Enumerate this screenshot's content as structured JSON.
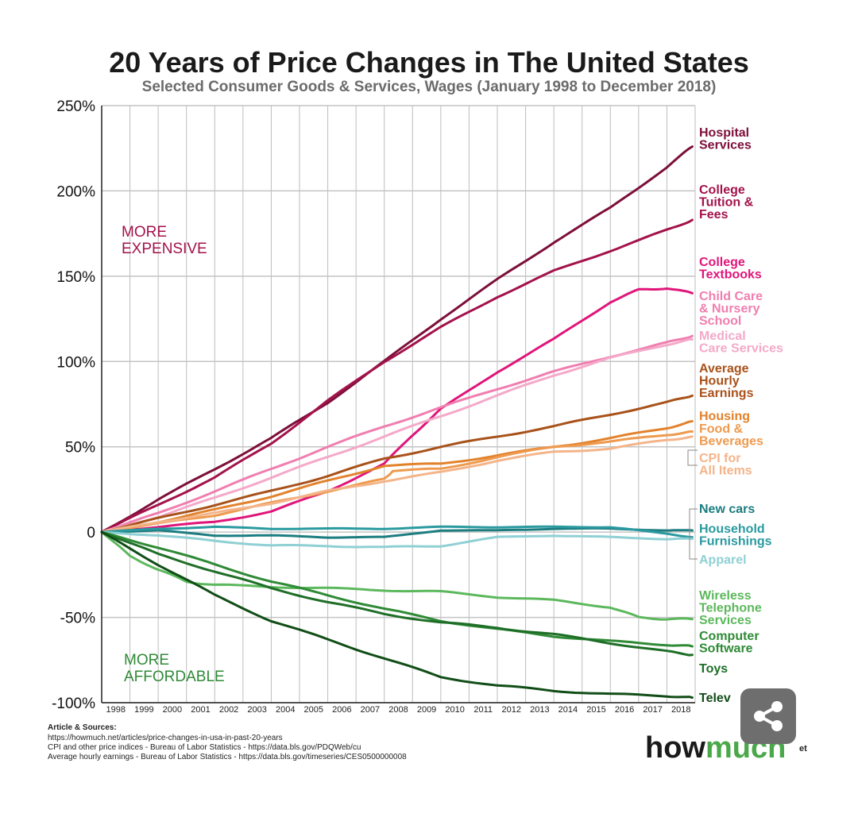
{
  "chart_data": {
    "type": "line",
    "title": "20 Years of Price Changes in The United States",
    "subtitle": "Selected Consumer Goods & Services, Wages (January 1998 to December 2018)",
    "ylim": [
      -100,
      250
    ],
    "xlim": [
      1998,
      2019
    ],
    "y_ticks": [
      {
        "value": 250,
        "label": "250%"
      },
      {
        "value": 200,
        "label": "200%"
      },
      {
        "value": 150,
        "label": "150%"
      },
      {
        "value": 100,
        "label": "100%"
      },
      {
        "value": 50,
        "label": "50%"
      },
      {
        "value": 0,
        "label": "0"
      },
      {
        "value": -50,
        "label": "-50%"
      },
      {
        "value": -100,
        "label": "-100%"
      }
    ],
    "x_ticks": [
      "1998",
      "1999",
      "2000",
      "2001",
      "2002",
      "2003",
      "2004",
      "2005",
      "2006",
      "2007",
      "2008",
      "2009",
      "2010",
      "2011",
      "2012",
      "2013",
      "2014",
      "2015",
      "2016",
      "2017",
      "2018"
    ],
    "grid": true,
    "annotations": {
      "more_expensive": [
        "MORE",
        "EXPENSIVE"
      ],
      "more_affordable": [
        "MORE",
        "AFFORDABLE"
      ]
    },
    "series": [
      {
        "name": "Hospital Services",
        "label_lines": [
          "Hospital",
          "Services"
        ],
        "icon": "hospital-icon",
        "color": "#7d0f3a",
        "x": [
          1998,
          2000,
          2002,
          2004,
          2006,
          2008,
          2010,
          2012,
          2014,
          2016,
          2018,
          2018.9
        ],
        "y": [
          0,
          19,
          37,
          55,
          76,
          100,
          125,
          148,
          170,
          190,
          214,
          226
        ]
      },
      {
        "name": "College Tuition & Fees",
        "label_lines": [
          "College",
          "Tuition &",
          "Fees"
        ],
        "icon": "graduation-cap-icon",
        "color": "#a3124a",
        "x": [
          1998,
          2000,
          2002,
          2004,
          2006,
          2008,
          2010,
          2012,
          2014,
          2016,
          2018,
          2018.9
        ],
        "y": [
          0,
          16,
          32,
          52,
          77,
          100,
          120,
          138,
          153,
          165,
          177,
          183
        ]
      },
      {
        "name": "College Textbooks",
        "label_lines": [
          "College",
          "Textbooks"
        ],
        "icon": "books-icon",
        "color": "#e0157a",
        "x": [
          1998,
          2000,
          2002,
          2004,
          2006,
          2008,
          2009,
          2010,
          2012,
          2014,
          2016,
          2017,
          2018,
          2018.9
        ],
        "y": [
          0,
          3,
          6,
          12,
          24,
          40,
          57,
          72,
          94,
          113,
          135,
          142,
          143,
          140
        ]
      },
      {
        "name": "Child Care & Nursery School",
        "label_lines": [
          "Child Care",
          "& Nursery",
          "School"
        ],
        "icon": "family-icon",
        "color": "#f07eb0",
        "x": [
          1998,
          2000,
          2002,
          2004,
          2006,
          2008,
          2010,
          2012,
          2014,
          2016,
          2018,
          2018.9
        ],
        "y": [
          0,
          11,
          24,
          37,
          50,
          62,
          73,
          84,
          94,
          103,
          111,
          115
        ]
      },
      {
        "name": "Medical Care Services",
        "label_lines": [
          "Medical",
          "Care Services"
        ],
        "icon": "medical-hand-icon",
        "color": "#f4a9c9",
        "x": [
          1998,
          2000,
          2002,
          2004,
          2006,
          2008,
          2010,
          2012,
          2014,
          2016,
          2018,
          2018.9
        ],
        "y": [
          0,
          9,
          20,
          32,
          44,
          56,
          68,
          80,
          92,
          102,
          110,
          113
        ]
      },
      {
        "name": "Average Hourly Earnings",
        "label_lines": [
          "Average",
          "Hourly",
          "Earnings"
        ],
        "icon": "clock-dollar-icon",
        "color": "#a8521a",
        "x": [
          1998,
          2000,
          2002,
          2004,
          2006,
          2008,
          2010,
          2012,
          2014,
          2016,
          2018,
          2018.9
        ],
        "y": [
          0,
          8,
          16,
          24,
          33,
          43,
          50,
          56,
          62,
          69,
          76,
          80
        ]
      },
      {
        "name": "Housing",
        "label_lines": [
          "Housing"
        ],
        "icon": "house-icon",
        "color": "#e2822c",
        "x": [
          1998,
          2000,
          2002,
          2004,
          2006,
          2008,
          2010,
          2012,
          2014,
          2016,
          2018,
          2018.9
        ],
        "y": [
          0,
          6,
          13,
          21,
          30,
          39,
          40,
          45,
          50,
          55,
          61,
          65
        ]
      },
      {
        "name": "Food & Beverages",
        "label_lines": [
          "Food &",
          "Beverages"
        ],
        "icon": "food-icon",
        "color": "#ee9a4e",
        "x": [
          1998,
          2000,
          2002,
          2004,
          2006,
          2008,
          2008.3,
          2010,
          2012,
          2014,
          2016,
          2018,
          2018.9
        ],
        "y": [
          0,
          5,
          10,
          17,
          24,
          31,
          36,
          37,
          44,
          50,
          53,
          57,
          59
        ]
      },
      {
        "name": "CPI for All Items",
        "label_lines": [
          "CPI for",
          "All Items"
        ],
        "icon": "price-tag-icon",
        "color": "#f4b48a",
        "x": [
          1998,
          2000,
          2002,
          2004,
          2006,
          2008,
          2010,
          2012,
          2014,
          2016,
          2018,
          2018.9
        ],
        "y": [
          0,
          6,
          11,
          17,
          24,
          30,
          35,
          42,
          47,
          49,
          54,
          56
        ]
      },
      {
        "name": "New cars",
        "label_lines": [
          "New cars"
        ],
        "icon": "car-icon",
        "color": "#1c7d80",
        "x": [
          1998,
          2000,
          2002,
          2004,
          2006,
          2008,
          2010,
          2012,
          2014,
          2016,
          2018,
          2018.9
        ],
        "y": [
          0,
          1,
          -2,
          -2,
          -3,
          -3,
          1,
          1,
          2,
          2,
          1,
          1
        ]
      },
      {
        "name": "Household Furnishings",
        "label_lines": [
          "Household",
          "Furnishings"
        ],
        "icon": "home-sofa-icon",
        "color": "#2a9aa0",
        "x": [
          1998,
          2000,
          2002,
          2004,
          2006,
          2008,
          2010,
          2012,
          2014,
          2016,
          2018,
          2018.9
        ],
        "y": [
          0,
          2,
          3,
          2,
          2,
          2,
          3,
          3,
          3,
          3,
          -1,
          -3
        ]
      },
      {
        "name": "Apparel",
        "label_lines": [
          "Apparel"
        ],
        "icon": "clothes-icon",
        "color": "#8fd0d4",
        "x": [
          1998,
          2000,
          2002,
          2004,
          2006,
          2008,
          2010,
          2012,
          2014,
          2016,
          2018,
          2018.9
        ],
        "y": [
          0,
          -2,
          -5,
          -8,
          -8,
          -9,
          -8,
          -3,
          -2,
          -3,
          -4,
          -4
        ]
      },
      {
        "name": "Wireless Telephone Services",
        "label_lines": [
          "Wireless",
          "Telephone",
          "Services"
        ],
        "icon": "phone-icon",
        "color": "#5cb85c",
        "x": [
          1998,
          1999,
          2000,
          2001,
          2002,
          2004,
          2006,
          2008,
          2010,
          2012,
          2014,
          2016,
          2017,
          2018,
          2018.9
        ],
        "y": [
          0,
          -14,
          -22,
          -29,
          -31,
          -32,
          -33,
          -34,
          -35,
          -38,
          -40,
          -44,
          -50,
          -51,
          -51
        ]
      },
      {
        "name": "Computer Software",
        "label_lines": [
          "Computer",
          "Software"
        ],
        "icon": "computer-icon",
        "color": "#2f8a36",
        "x": [
          1998,
          2000,
          2002,
          2004,
          2006,
          2008,
          2010,
          2012,
          2014,
          2016,
          2018,
          2018.9
        ],
        "y": [
          0,
          -9,
          -19,
          -29,
          -37,
          -45,
          -52,
          -57,
          -61,
          -64,
          -66,
          -67
        ]
      },
      {
        "name": "Toys",
        "label_lines": [
          "Toys"
        ],
        "icon": "toys-icon",
        "color": "#1e6e27",
        "x": [
          1998,
          2000,
          2002,
          2004,
          2006,
          2008,
          2010,
          2012,
          2014,
          2016,
          2018,
          2018.9
        ],
        "y": [
          0,
          -13,
          -23,
          -33,
          -41,
          -48,
          -53,
          -56,
          -60,
          -65,
          -70,
          -72
        ]
      },
      {
        "name": "Televisions",
        "label_lines": [
          "Telev"
        ],
        "icon": "tv-icon",
        "color": "#114d17",
        "x": [
          1998,
          2000,
          2002,
          2004,
          2006,
          2008,
          2010,
          2012,
          2014,
          2016,
          2018,
          2018.9
        ],
        "y": [
          0,
          -19,
          -37,
          -52,
          -63,
          -74,
          -85,
          -90,
          -93,
          -95,
          -96,
          -97
        ]
      }
    ]
  },
  "sources": {
    "heading": "Article & Sources:",
    "lines": [
      "https://howmuch.net/articles/price-changes-in-usa-in-past-20-years",
      "CPI and other price indices - Bureau of Labor Statistics - https://data.bls.gov/PDQWeb/cu",
      "Average hourly earnings - Bureau of Labor Statistics - https://data.bls.gov/timeseries/CES0500000008"
    ]
  },
  "brand": {
    "part1": "how",
    "part2": "much",
    "tail": "et"
  },
  "share_button": {
    "icon": "share-icon",
    "color": "#6e6e6e"
  }
}
